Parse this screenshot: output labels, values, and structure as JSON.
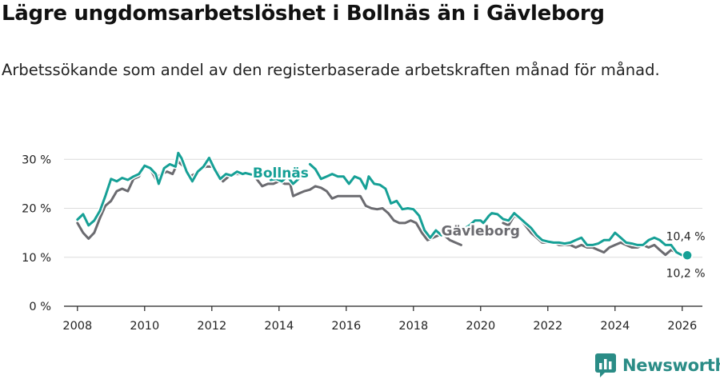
{
  "title": "Lägre ungdomsarbetslöshet i Bollnäs än i Gävleborg",
  "subtitle": "Arbetssökande som andel av den registerbaserade arbetskraften månad för månad.",
  "brand": {
    "name": "Newsworthy",
    "color": "#2a8c86"
  },
  "chart_data": {
    "type": "line",
    "ylim": [
      0,
      32
    ],
    "xlim": [
      2007.6,
      2026.6
    ],
    "yticks": [
      0,
      10,
      20,
      30
    ],
    "ytick_labels": [
      "0 %",
      "10 %",
      "20 %",
      "30 %"
    ],
    "xticks": [
      2008,
      2010,
      2012,
      2014,
      2016,
      2018,
      2020,
      2022,
      2024,
      2026
    ],
    "xtick_labels": [
      "2008",
      "2010",
      "2012",
      "2014",
      "2016",
      "2018",
      "2020",
      "2022",
      "2024",
      "2026"
    ],
    "xlabel": "",
    "ylabel": "",
    "series": [
      {
        "name": "Bollnäs",
        "color": "#16a096",
        "label": "Bollnäs",
        "end_label": "10,4 %",
        "points": [
          [
            2008.0,
            17.7
          ],
          [
            2008.17,
            18.8
          ],
          [
            2008.33,
            16.5
          ],
          [
            2008.5,
            17.5
          ],
          [
            2008.67,
            19.5
          ],
          [
            2008.83,
            22.5
          ],
          [
            2009.0,
            26.0
          ],
          [
            2009.17,
            25.5
          ],
          [
            2009.33,
            26.2
          ],
          [
            2009.5,
            25.8
          ],
          [
            2009.67,
            26.5
          ],
          [
            2009.83,
            27.0
          ],
          [
            2010.0,
            28.7
          ],
          [
            2010.17,
            28.2
          ],
          [
            2010.33,
            27.0
          ],
          [
            2010.42,
            25.0
          ],
          [
            2010.58,
            28.2
          ],
          [
            2010.75,
            29.0
          ],
          [
            2010.92,
            28.5
          ],
          [
            2011.0,
            31.3
          ],
          [
            2011.1,
            30.2
          ],
          [
            2011.25,
            27.5
          ],
          [
            2011.42,
            25.5
          ],
          [
            2011.58,
            27.5
          ],
          [
            2011.75,
            28.5
          ],
          [
            2011.92,
            30.3
          ],
          [
            2012.08,
            28.0
          ],
          [
            2012.25,
            26.0
          ],
          [
            2012.42,
            27.0
          ],
          [
            2012.58,
            26.7
          ],
          [
            2012.75,
            27.5
          ],
          [
            2012.92,
            27.0
          ],
          [
            2013.0,
            27.2
          ],
          [
            2013.17,
            26.9
          ]
        ]
      },
      {
        "name": "Bollnäs",
        "color": "#16a096",
        "points": [
          [
            2013.75,
            25.8
          ],
          [
            2013.92,
            26.0
          ],
          [
            2014.08,
            25.5
          ],
          [
            2014.25,
            26.5
          ],
          [
            2014.42,
            25.0
          ],
          [
            2014.58,
            26.0
          ],
          [
            2014.67,
            26.5
          ]
        ]
      },
      {
        "name": "Bollnäs",
        "color": "#16a096",
        "points": [
          [
            2014.92,
            29.0
          ],
          [
            2015.08,
            28.0
          ],
          [
            2015.25,
            26.0
          ],
          [
            2015.42,
            26.5
          ],
          [
            2015.58,
            27.0
          ],
          [
            2015.75,
            26.5
          ],
          [
            2015.92,
            26.5
          ],
          [
            2016.08,
            25.0
          ],
          [
            2016.25,
            26.5
          ],
          [
            2016.42,
            26.0
          ],
          [
            2016.58,
            24.0
          ],
          [
            2016.67,
            26.5
          ],
          [
            2016.83,
            25.0
          ],
          [
            2017.0,
            24.8
          ],
          [
            2017.17,
            24.0
          ],
          [
            2017.33,
            21.0
          ],
          [
            2017.5,
            21.5
          ],
          [
            2017.67,
            19.8
          ],
          [
            2017.83,
            20.0
          ],
          [
            2018.0,
            19.8
          ],
          [
            2018.17,
            18.5
          ],
          [
            2018.33,
            15.5
          ],
          [
            2018.5,
            14.0
          ],
          [
            2018.67,
            15.5
          ],
          [
            2018.83,
            14.5
          ]
        ]
      },
      {
        "name": "Bollnäs",
        "color": "#16a096",
        "points": [
          [
            2019.5,
            15.8
          ],
          [
            2019.67,
            16.5
          ],
          [
            2019.83,
            17.5
          ],
          [
            2020.0,
            17.5
          ],
          [
            2020.08,
            17.0
          ],
          [
            2020.25,
            18.5
          ],
          [
            2020.33,
            19.0
          ],
          [
            2020.5,
            18.8
          ],
          [
            2020.67,
            17.8
          ],
          [
            2020.83,
            17.5
          ],
          [
            2021.0,
            19.0
          ],
          [
            2021.17,
            18.0
          ],
          [
            2021.33,
            17.0
          ],
          [
            2021.5,
            16.0
          ],
          [
            2021.67,
            14.5
          ],
          [
            2021.83,
            13.5
          ],
          [
            2022.0,
            13.2
          ],
          [
            2022.17,
            13.0
          ],
          [
            2022.33,
            13.0
          ],
          [
            2022.5,
            12.8
          ],
          [
            2022.67,
            13.0
          ],
          [
            2022.83,
            13.5
          ],
          [
            2023.0,
            14.0
          ],
          [
            2023.17,
            12.5
          ],
          [
            2023.33,
            12.5
          ],
          [
            2023.5,
            12.8
          ],
          [
            2023.67,
            13.5
          ],
          [
            2023.83,
            13.5
          ],
          [
            2024.0,
            15.0
          ],
          [
            2024.17,
            14.0
          ],
          [
            2024.33,
            13.0
          ],
          [
            2024.5,
            12.8
          ],
          [
            2024.67,
            12.5
          ],
          [
            2024.83,
            12.5
          ],
          [
            2025.0,
            13.5
          ],
          [
            2025.17,
            14.0
          ],
          [
            2025.33,
            13.5
          ],
          [
            2025.5,
            12.5
          ],
          [
            2025.67,
            12.5
          ],
          [
            2025.83,
            11.0
          ],
          [
            2026.0,
            10.4
          ],
          [
            2026.15,
            10.4
          ]
        ]
      },
      {
        "name": "Gävleborg",
        "color": "#6b6b70",
        "label": "Gävleborg",
        "end_label": "10,2 %",
        "points": [
          [
            2008.0,
            17.0
          ],
          [
            2008.17,
            15.0
          ],
          [
            2008.33,
            13.8
          ],
          [
            2008.5,
            15.0
          ],
          [
            2008.67,
            18.0
          ],
          [
            2008.83,
            20.5
          ],
          [
            2009.0,
            21.5
          ],
          [
            2009.17,
            23.5
          ],
          [
            2009.33,
            24.0
          ],
          [
            2009.5,
            23.5
          ],
          [
            2009.67,
            26.0
          ],
          [
            2009.83,
            26.5
          ],
          [
            2010.0,
            28.5
          ],
          [
            2010.17,
            28.0
          ],
          [
            2010.33,
            26.0
          ],
          [
            2010.5,
            27.0
          ],
          [
            2010.67,
            27.5
          ],
          [
            2010.83,
            27.0
          ],
          [
            2011.0,
            29.5
          ],
          [
            2011.17,
            28.5
          ],
          [
            2011.33,
            26.5
          ],
          [
            2011.5,
            27.0
          ],
          [
            2011.67,
            28.0
          ],
          [
            2011.83,
            28.5
          ],
          [
            2012.0,
            28.5
          ],
          [
            2012.17,
            27.5
          ],
          [
            2012.33,
            25.5
          ],
          [
            2012.5,
            26.5
          ],
          [
            2012.67,
            27.0
          ],
          [
            2012.83,
            27.0
          ],
          [
            2013.0,
            27.0
          ],
          [
            2013.17,
            27.0
          ],
          [
            2013.33,
            26.0
          ],
          [
            2013.5,
            24.5
          ],
          [
            2013.67,
            25.0
          ],
          [
            2013.83,
            25.0
          ],
          [
            2014.0,
            25.5
          ],
          [
            2014.17,
            25.0
          ],
          [
            2014.33,
            25.0
          ],
          [
            2014.42,
            22.5
          ],
          [
            2014.58,
            23.0
          ],
          [
            2014.75,
            23.5
          ],
          [
            2014.92,
            23.8
          ],
          [
            2015.08,
            24.5
          ],
          [
            2015.25,
            24.2
          ],
          [
            2015.42,
            23.5
          ],
          [
            2015.58,
            22.0
          ],
          [
            2015.75,
            22.5
          ],
          [
            2015.92,
            22.5
          ],
          [
            2016.08,
            22.5
          ],
          [
            2016.25,
            22.5
          ],
          [
            2016.42,
            22.5
          ],
          [
            2016.58,
            20.5
          ],
          [
            2016.75,
            20.0
          ],
          [
            2016.92,
            19.8
          ],
          [
            2017.08,
            20.0
          ],
          [
            2017.25,
            19.0
          ],
          [
            2017.42,
            17.5
          ],
          [
            2017.58,
            17.0
          ],
          [
            2017.75,
            17.0
          ],
          [
            2017.92,
            17.5
          ],
          [
            2018.08,
            17.0
          ],
          [
            2018.25,
            15.0
          ],
          [
            2018.42,
            13.5
          ],
          [
            2018.58,
            14.0
          ],
          [
            2018.75,
            14.5
          ],
          [
            2018.92,
            14.5
          ],
          [
            2019.08,
            13.5
          ],
          [
            2019.25,
            13.0
          ],
          [
            2019.42,
            12.5
          ]
        ]
      },
      {
        "name": "Gävleborg",
        "color": "#6b6b70",
        "points": [
          [
            2020.67,
            17.0
          ],
          [
            2020.83,
            16.5
          ],
          [
            2021.0,
            18.5
          ],
          [
            2021.17,
            17.8
          ],
          [
            2021.33,
            16.5
          ],
          [
            2021.5,
            15.0
          ],
          [
            2021.67,
            14.0
          ],
          [
            2021.83,
            13.0
          ],
          [
            2022.0,
            13.0
          ],
          [
            2022.17,
            13.0
          ],
          [
            2022.33,
            12.5
          ],
          [
            2022.5,
            12.5
          ],
          [
            2022.67,
            12.5
          ],
          [
            2022.83,
            12.0
          ],
          [
            2023.0,
            12.5
          ],
          [
            2023.17,
            12.0
          ],
          [
            2023.33,
            12.0
          ],
          [
            2023.5,
            11.5
          ],
          [
            2023.67,
            11.0
          ],
          [
            2023.83,
            12.0
          ],
          [
            2024.0,
            12.5
          ],
          [
            2024.17,
            13.0
          ],
          [
            2024.33,
            12.5
          ],
          [
            2024.5,
            12.0
          ],
          [
            2024.67,
            12.0
          ],
          [
            2024.83,
            12.5
          ],
          [
            2025.0,
            12.0
          ],
          [
            2025.17,
            12.5
          ],
          [
            2025.33,
            11.5
          ],
          [
            2025.5,
            10.5
          ],
          [
            2025.67,
            11.5
          ],
          [
            2025.83,
            11.0
          ],
          [
            2026.0,
            10.2
          ],
          [
            2026.15,
            10.2
          ]
        ]
      }
    ]
  }
}
